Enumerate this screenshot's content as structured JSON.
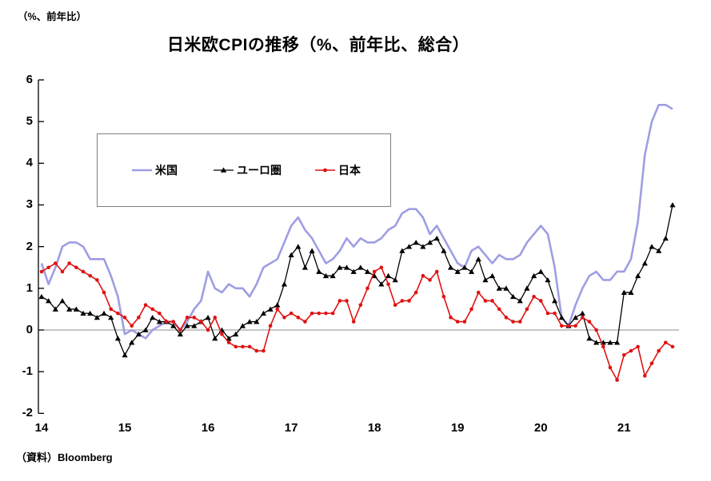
{
  "header": {
    "unit_label": "（%、前年比）",
    "title": "日米欧CPIの推移（%、前年比、総合）"
  },
  "footer": {
    "source": "（資料）Bloomberg"
  },
  "chart_data": {
    "type": "line",
    "title": "日米欧CPIの推移（%、前年比、総合）",
    "x_axis": "monthly, Jan 2014 - Aug 2021",
    "x_tick_labels": [
      "14",
      "15",
      "16",
      "17",
      "18",
      "19",
      "20",
      "21"
    ],
    "y_tick_labels": [
      6,
      5,
      4,
      3,
      2,
      1,
      0,
      -1,
      -2
    ],
    "ylim": [
      -2,
      6
    ],
    "grid": "zero line only",
    "legend_position": "inside top-left",
    "axis_color": "#000000",
    "zero_line_color": "#8c8c8c",
    "series": [
      {
        "name": "米国",
        "key": "us",
        "color": "#9e9ee3",
        "marker": "none",
        "line_width": 2.6,
        "values": [
          1.6,
          1.1,
          1.5,
          2.0,
          2.1,
          2.1,
          2.0,
          1.7,
          1.7,
          1.7,
          1.3,
          0.8,
          -0.1,
          0.0,
          -0.1,
          -0.2,
          0.0,
          0.1,
          0.2,
          0.2,
          0.0,
          0.2,
          0.5,
          0.7,
          1.4,
          1.0,
          0.9,
          1.1,
          1.0,
          1.0,
          0.8,
          1.1,
          1.5,
          1.6,
          1.7,
          2.1,
          2.5,
          2.7,
          2.4,
          2.2,
          1.9,
          1.6,
          1.7,
          1.9,
          2.2,
          2.0,
          2.2,
          2.1,
          2.1,
          2.2,
          2.4,
          2.5,
          2.8,
          2.9,
          2.9,
          2.7,
          2.3,
          2.5,
          2.2,
          1.9,
          1.6,
          1.5,
          1.9,
          2.0,
          1.8,
          1.6,
          1.8,
          1.7,
          1.7,
          1.8,
          2.1,
          2.3,
          2.5,
          2.3,
          1.5,
          0.3,
          0.1,
          0.6,
          1.0,
          1.3,
          1.4,
          1.2,
          1.2,
          1.4,
          1.4,
          1.7,
          2.6,
          4.2,
          5.0,
          5.4,
          5.4,
          5.3
        ]
      },
      {
        "name": "ユーロ圏",
        "key": "euro",
        "color": "#000000",
        "marker": "triangle",
        "line_width": 1.3,
        "values": [
          0.8,
          0.7,
          0.5,
          0.7,
          0.5,
          0.5,
          0.4,
          0.4,
          0.3,
          0.4,
          0.3,
          -0.2,
          -0.6,
          -0.3,
          -0.1,
          0.0,
          0.3,
          0.2,
          0.2,
          0.1,
          -0.1,
          0.1,
          0.1,
          0.2,
          0.3,
          -0.2,
          0.0,
          -0.2,
          -0.1,
          0.1,
          0.2,
          0.2,
          0.4,
          0.5,
          0.6,
          1.1,
          1.8,
          2.0,
          1.5,
          1.9,
          1.4,
          1.3,
          1.3,
          1.5,
          1.5,
          1.4,
          1.5,
          1.4,
          1.3,
          1.1,
          1.3,
          1.2,
          1.9,
          2.0,
          2.1,
          2.0,
          2.1,
          2.2,
          1.9,
          1.5,
          1.4,
          1.5,
          1.4,
          1.7,
          1.2,
          1.3,
          1.0,
          1.0,
          0.8,
          0.7,
          1.0,
          1.3,
          1.4,
          1.2,
          0.7,
          0.3,
          0.1,
          0.3,
          0.4,
          -0.2,
          -0.3,
          -0.3,
          -0.3,
          -0.3,
          0.9,
          0.9,
          1.3,
          1.6,
          2.0,
          1.9,
          2.2,
          3.0
        ]
      },
      {
        "name": "日本",
        "key": "japan",
        "color": "#e01212",
        "marker": "circle",
        "line_width": 1.6,
        "values": [
          1.4,
          1.5,
          1.6,
          1.4,
          1.6,
          1.5,
          1.4,
          1.3,
          1.2,
          0.9,
          0.5,
          0.4,
          0.3,
          0.1,
          0.3,
          0.6,
          0.5,
          0.4,
          0.2,
          0.2,
          0.0,
          0.3,
          0.3,
          0.2,
          0.0,
          0.3,
          -0.1,
          -0.3,
          -0.4,
          -0.4,
          -0.4,
          -0.5,
          -0.5,
          0.1,
          0.5,
          0.3,
          0.4,
          0.3,
          0.2,
          0.4,
          0.4,
          0.4,
          0.4,
          0.7,
          0.7,
          0.2,
          0.6,
          1.0,
          1.4,
          1.5,
          1.1,
          0.6,
          0.7,
          0.7,
          0.9,
          1.3,
          1.2,
          1.4,
          0.8,
          0.3,
          0.2,
          0.2,
          0.5,
          0.9,
          0.7,
          0.7,
          0.5,
          0.3,
          0.2,
          0.2,
          0.5,
          0.8,
          0.7,
          0.4,
          0.4,
          0.1,
          0.1,
          0.1,
          0.3,
          0.2,
          0.0,
          -0.4,
          -0.9,
          -1.2,
          -0.6,
          -0.5,
          -0.4,
          -1.1,
          -0.8,
          -0.5,
          -0.3,
          -0.4
        ]
      }
    ]
  }
}
